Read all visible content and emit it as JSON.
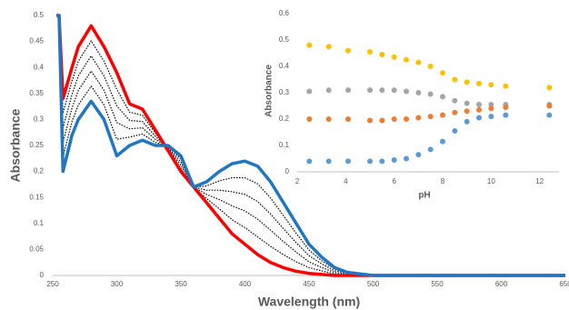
{
  "chart_data": [
    {
      "type": "line",
      "x_label": "Wavelength (nm)",
      "y_label": "Absorbance",
      "x": [
        253,
        255,
        258,
        265,
        270,
        280,
        290,
        300,
        310,
        320,
        330,
        340,
        350,
        360,
        370,
        380,
        390,
        400,
        410,
        420,
        430,
        440,
        450,
        460,
        470,
        480,
        500,
        550,
        600,
        650
      ],
      "xlim": [
        250,
        650
      ],
      "xticks": [
        250,
        300,
        350,
        400,
        450,
        500,
        550,
        600,
        650
      ],
      "ylim": [
        0,
        0.5
      ],
      "yticks": [
        0,
        0.05,
        0.1,
        0.15,
        0.2,
        0.25,
        0.3,
        0.35,
        0.4,
        0.45,
        0.5
      ],
      "grid": false,
      "series": [
        {
          "color": "#000000",
          "style": "dotted",
          "values": [
            0.5,
            0.5,
            0.312,
            0.374,
            0.412,
            0.451,
            0.412,
            0.358,
            0.314,
            0.308,
            0.274,
            0.242,
            0.206,
            0.17,
            0.148,
            0.128,
            0.107,
            0.092,
            0.074,
            0.056,
            0.04,
            0.026,
            0.015,
            0.009,
            0.003,
            0.001,
            0,
            0,
            0,
            0
          ]
        },
        {
          "color": "#000000",
          "style": "dotted",
          "values": [
            0.5,
            0.5,
            0.284,
            0.348,
            0.384,
            0.422,
            0.384,
            0.326,
            0.298,
            0.296,
            0.268,
            0.244,
            0.212,
            0.17,
            0.156,
            0.146,
            0.134,
            0.124,
            0.108,
            0.087,
            0.065,
            0.045,
            0.026,
            0.015,
            0.006,
            0.002,
            0,
            0,
            0,
            0
          ]
        },
        {
          "color": "#000000",
          "style": "dotted",
          "values": [
            0.5,
            0.5,
            0.256,
            0.322,
            0.356,
            0.393,
            0.356,
            0.294,
            0.282,
            0.284,
            0.262,
            0.246,
            0.218,
            0.17,
            0.164,
            0.164,
            0.161,
            0.156,
            0.142,
            0.118,
            0.09,
            0.063,
            0.038,
            0.022,
            0.009,
            0.004,
            0,
            0,
            0,
            0
          ]
        },
        {
          "color": "#000000",
          "style": "dotted",
          "values": [
            0.5,
            0.5,
            0.228,
            0.296,
            0.328,
            0.364,
            0.328,
            0.262,
            0.266,
            0.272,
            0.256,
            0.248,
            0.224,
            0.17,
            0.172,
            0.182,
            0.188,
            0.188,
            0.176,
            0.149,
            0.115,
            0.081,
            0.049,
            0.028,
            0.012,
            0.005,
            0,
            0,
            0,
            0
          ]
        },
        {
          "color": "#ff0000",
          "style": "bold",
          "values": [
            0.5,
            0.5,
            0.34,
            0.4,
            0.44,
            0.48,
            0.44,
            0.39,
            0.33,
            0.32,
            0.28,
            0.24,
            0.2,
            0.17,
            0.14,
            0.11,
            0.08,
            0.06,
            0.04,
            0.025,
            0.015,
            0.008,
            0.004,
            0.002,
            0,
            0,
            0,
            0,
            0,
            0
          ]
        },
        {
          "color": "#1f77c4",
          "style": "bold",
          "values": [
            0.5,
            0.5,
            0.2,
            0.27,
            0.3,
            0.335,
            0.3,
            0.23,
            0.25,
            0.26,
            0.25,
            0.25,
            0.23,
            0.17,
            0.18,
            0.2,
            0.215,
            0.22,
            0.21,
            0.18,
            0.14,
            0.1,
            0.06,
            0.035,
            0.015,
            0.006,
            0,
            0,
            0,
            0
          ]
        }
      ]
    },
    {
      "type": "scatter",
      "x_label": "pH",
      "y_label": "Absorbance",
      "x": [
        2.5,
        3.3,
        4.1,
        5.0,
        5.5,
        6.0,
        6.5,
        7.0,
        7.5,
        8.0,
        8.5,
        9.0,
        9.5,
        10.0,
        10.6,
        12.4
      ],
      "xlim": [
        2,
        12.8
      ],
      "xticks": [
        2,
        4,
        6,
        8,
        10,
        12
      ],
      "ylim": [
        0,
        0.6
      ],
      "yticks": [
        0,
        0.1,
        0.2,
        0.3,
        0.4,
        0.5,
        0.6
      ],
      "grid": false,
      "series": [
        {
          "color": "#ffc000",
          "values": [
            0.48,
            0.475,
            0.46,
            0.455,
            0.445,
            0.435,
            0.425,
            0.415,
            0.4,
            0.375,
            0.35,
            0.34,
            0.335,
            0.33,
            0.325,
            0.32
          ]
        },
        {
          "color": "#a5a5a5",
          "values": [
            0.305,
            0.31,
            0.31,
            0.31,
            0.31,
            0.31,
            0.305,
            0.3,
            0.295,
            0.285,
            0.27,
            0.26,
            0.255,
            0.255,
            0.255,
            0.255
          ]
        },
        {
          "color": "#ed7d31",
          "values": [
            0.2,
            0.2,
            0.2,
            0.195,
            0.195,
            0.2,
            0.2,
            0.205,
            0.21,
            0.215,
            0.225,
            0.23,
            0.235,
            0.24,
            0.245,
            0.25
          ]
        },
        {
          "color": "#5b9bd5",
          "values": [
            0.04,
            0.04,
            0.04,
            0.04,
            0.04,
            0.045,
            0.05,
            0.065,
            0.085,
            0.115,
            0.155,
            0.19,
            0.205,
            0.21,
            0.215,
            0.215
          ]
        }
      ]
    }
  ]
}
